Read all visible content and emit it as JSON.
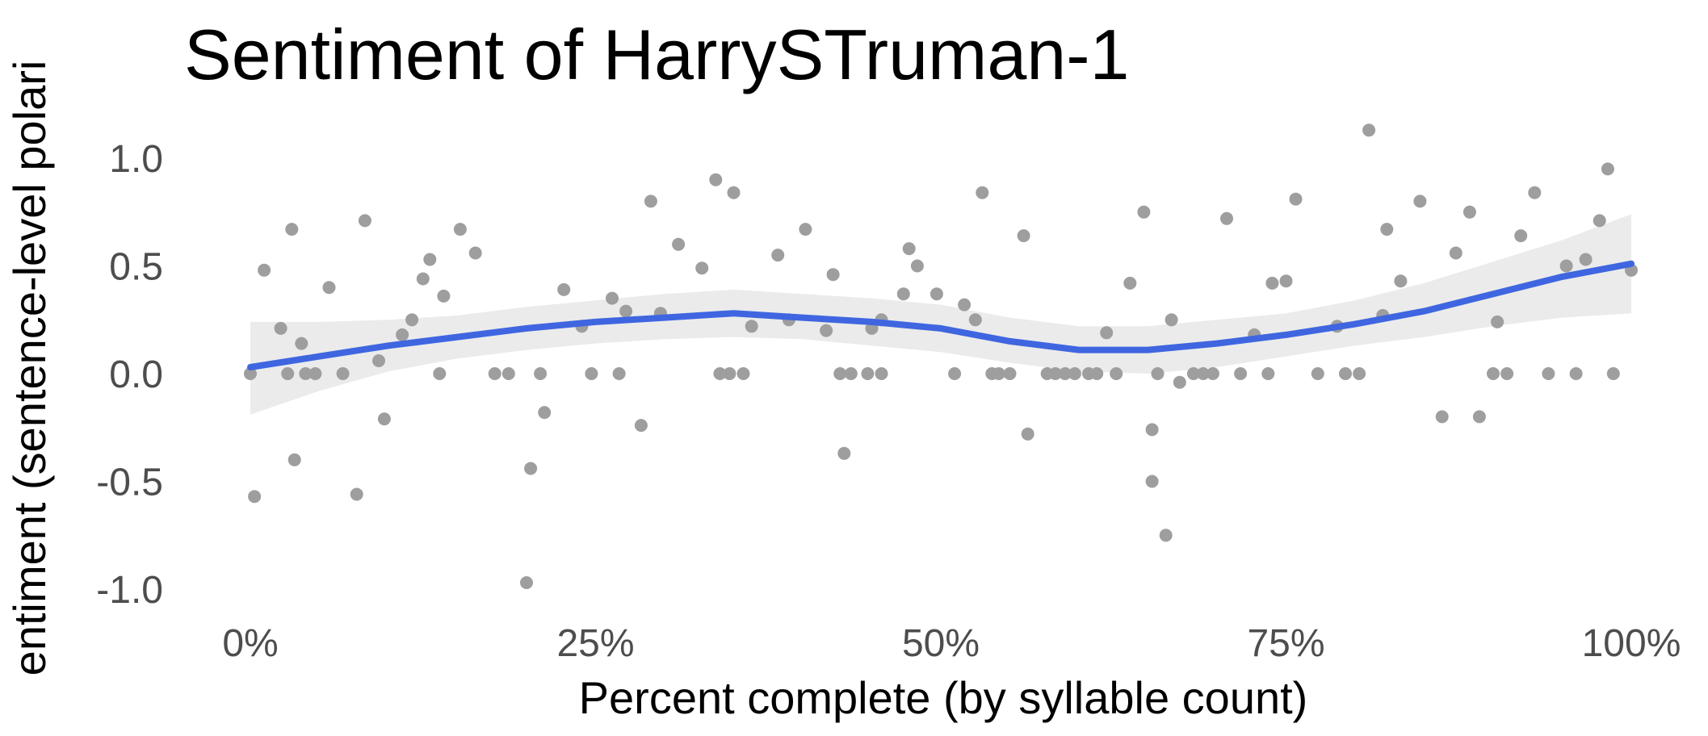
{
  "chart_data": {
    "type": "scatter",
    "title": "Sentiment of HarrySTruman-1",
    "xlabel": "Percent complete (by syllable count)",
    "ylabel": "entiment (sentence-level polari",
    "xlim": [
      -0.02,
      1.02
    ],
    "ylim": [
      -1.1,
      1.2
    ],
    "x_ticks": [
      0,
      0.25,
      0.5,
      0.75,
      1.0
    ],
    "x_tick_labels": [
      "0%",
      "25%",
      "50%",
      "75%",
      "100%"
    ],
    "y_ticks": [
      -1.0,
      -0.5,
      0.0,
      0.5,
      1.0
    ],
    "y_tick_labels": [
      "-1.0",
      "-0.5",
      "0.0",
      "0.5",
      "1.0"
    ],
    "grid": false,
    "colors": {
      "points": "#9e9e9e",
      "smooth": "#3f66e0",
      "band": "#ebebeb"
    },
    "points": [
      [
        0.0,
        0.0
      ],
      [
        0.003,
        -0.57
      ],
      [
        0.01,
        0.48
      ],
      [
        0.022,
        0.21
      ],
      [
        0.027,
        0.0
      ],
      [
        0.03,
        0.67
      ],
      [
        0.032,
        -0.4
      ],
      [
        0.037,
        0.14
      ],
      [
        0.04,
        0.0
      ],
      [
        0.047,
        0.0
      ],
      [
        0.057,
        0.4
      ],
      [
        0.067,
        0.0
      ],
      [
        0.077,
        -0.56
      ],
      [
        0.083,
        0.71
      ],
      [
        0.093,
        0.06
      ],
      [
        0.097,
        -0.21
      ],
      [
        0.11,
        0.18
      ],
      [
        0.117,
        0.25
      ],
      [
        0.125,
        0.44
      ],
      [
        0.13,
        0.53
      ],
      [
        0.137,
        0.0
      ],
      [
        0.14,
        0.36
      ],
      [
        0.152,
        0.67
      ],
      [
        0.163,
        0.56
      ],
      [
        0.177,
        0.0
      ],
      [
        0.187,
        0.0
      ],
      [
        0.2,
        -0.97
      ],
      [
        0.203,
        -0.44
      ],
      [
        0.21,
        0.0
      ],
      [
        0.213,
        -0.18
      ],
      [
        0.227,
        0.39
      ],
      [
        0.24,
        0.22
      ],
      [
        0.247,
        0.0
      ],
      [
        0.262,
        0.35
      ],
      [
        0.267,
        0.0
      ],
      [
        0.272,
        0.29
      ],
      [
        0.283,
        -0.24
      ],
      [
        0.29,
        0.8
      ],
      [
        0.297,
        0.28
      ],
      [
        0.31,
        0.6
      ],
      [
        0.327,
        0.49
      ],
      [
        0.337,
        0.9
      ],
      [
        0.34,
        0.0
      ],
      [
        0.347,
        0.0
      ],
      [
        0.35,
        0.84
      ],
      [
        0.357,
        0.0
      ],
      [
        0.363,
        0.22
      ],
      [
        0.382,
        0.55
      ],
      [
        0.39,
        0.25
      ],
      [
        0.402,
        0.67
      ],
      [
        0.417,
        0.2
      ],
      [
        0.422,
        0.46
      ],
      [
        0.427,
        0.0
      ],
      [
        0.43,
        -0.37
      ],
      [
        0.435,
        0.0
      ],
      [
        0.447,
        0.0
      ],
      [
        0.45,
        0.21
      ],
      [
        0.457,
        0.25
      ],
      [
        0.457,
        0.0
      ],
      [
        0.473,
        0.37
      ],
      [
        0.477,
        0.58
      ],
      [
        0.483,
        0.5
      ],
      [
        0.497,
        0.37
      ],
      [
        0.51,
        0.0
      ],
      [
        0.517,
        0.32
      ],
      [
        0.525,
        0.25
      ],
      [
        0.53,
        0.84
      ],
      [
        0.537,
        0.0
      ],
      [
        0.542,
        0.0
      ],
      [
        0.55,
        0.0
      ],
      [
        0.56,
        0.64
      ],
      [
        0.563,
        -0.28
      ],
      [
        0.577,
        0.0
      ],
      [
        0.583,
        0.0
      ],
      [
        0.59,
        0.0
      ],
      [
        0.597,
        0.0
      ],
      [
        0.607,
        0.0
      ],
      [
        0.613,
        0.0
      ],
      [
        0.62,
        0.19
      ],
      [
        0.627,
        0.0
      ],
      [
        0.637,
        0.42
      ],
      [
        0.647,
        0.75
      ],
      [
        0.653,
        -0.26
      ],
      [
        0.653,
        -0.5
      ],
      [
        0.657,
        0.0
      ],
      [
        0.663,
        -0.75
      ],
      [
        0.667,
        0.25
      ],
      [
        0.673,
        -0.04
      ],
      [
        0.683,
        0.0
      ],
      [
        0.69,
        0.0
      ],
      [
        0.697,
        0.0
      ],
      [
        0.707,
        0.72
      ],
      [
        0.717,
        0.0
      ],
      [
        0.727,
        0.18
      ],
      [
        0.737,
        0.0
      ],
      [
        0.74,
        0.42
      ],
      [
        0.75,
        0.43
      ],
      [
        0.757,
        0.81
      ],
      [
        0.773,
        0.0
      ],
      [
        0.787,
        0.22
      ],
      [
        0.793,
        0.0
      ],
      [
        0.803,
        0.0
      ],
      [
        0.81,
        1.13
      ],
      [
        0.82,
        0.27
      ],
      [
        0.823,
        0.67
      ],
      [
        0.833,
        0.43
      ],
      [
        0.847,
        0.8
      ],
      [
        0.863,
        -0.2
      ],
      [
        0.873,
        0.56
      ],
      [
        0.883,
        0.75
      ],
      [
        0.89,
        -0.2
      ],
      [
        0.9,
        0.0
      ],
      [
        0.903,
        0.24
      ],
      [
        0.91,
        0.0
      ],
      [
        0.92,
        0.64
      ],
      [
        0.93,
        0.84
      ],
      [
        0.94,
        0.0
      ],
      [
        0.953,
        0.5
      ],
      [
        0.96,
        0.0
      ],
      [
        0.967,
        0.53
      ],
      [
        0.977,
        0.71
      ],
      [
        0.983,
        0.95
      ],
      [
        0.987,
        0.0
      ],
      [
        1.0,
        0.48
      ]
    ],
    "smooth_line": [
      [
        0.0,
        0.03
      ],
      [
        0.05,
        0.08
      ],
      [
        0.1,
        0.13
      ],
      [
        0.15,
        0.17
      ],
      [
        0.2,
        0.21
      ],
      [
        0.25,
        0.24
      ],
      [
        0.3,
        0.26
      ],
      [
        0.35,
        0.28
      ],
      [
        0.4,
        0.26
      ],
      [
        0.45,
        0.24
      ],
      [
        0.5,
        0.21
      ],
      [
        0.55,
        0.15
      ],
      [
        0.6,
        0.11
      ],
      [
        0.65,
        0.11
      ],
      [
        0.7,
        0.14
      ],
      [
        0.75,
        0.18
      ],
      [
        0.8,
        0.23
      ],
      [
        0.85,
        0.29
      ],
      [
        0.9,
        0.37
      ],
      [
        0.95,
        0.45
      ],
      [
        1.0,
        0.51
      ]
    ],
    "band_upper": [
      [
        0.0,
        0.24
      ],
      [
        0.05,
        0.24
      ],
      [
        0.1,
        0.25
      ],
      [
        0.15,
        0.27
      ],
      [
        0.2,
        0.31
      ],
      [
        0.25,
        0.34
      ],
      [
        0.3,
        0.37
      ],
      [
        0.35,
        0.39
      ],
      [
        0.4,
        0.37
      ],
      [
        0.45,
        0.35
      ],
      [
        0.5,
        0.32
      ],
      [
        0.55,
        0.26
      ],
      [
        0.6,
        0.22
      ],
      [
        0.65,
        0.22
      ],
      [
        0.7,
        0.25
      ],
      [
        0.75,
        0.28
      ],
      [
        0.8,
        0.34
      ],
      [
        0.85,
        0.42
      ],
      [
        0.9,
        0.52
      ],
      [
        0.95,
        0.62
      ],
      [
        1.0,
        0.74
      ]
    ],
    "band_lower": [
      [
        0.0,
        -0.19
      ],
      [
        0.05,
        -0.08
      ],
      [
        0.1,
        0.01
      ],
      [
        0.15,
        0.07
      ],
      [
        0.2,
        0.11
      ],
      [
        0.25,
        0.14
      ],
      [
        0.3,
        0.16
      ],
      [
        0.35,
        0.17
      ],
      [
        0.4,
        0.16
      ],
      [
        0.45,
        0.13
      ],
      [
        0.5,
        0.1
      ],
      [
        0.55,
        0.05
      ],
      [
        0.6,
        0.01
      ],
      [
        0.65,
        0.0
      ],
      [
        0.7,
        0.03
      ],
      [
        0.75,
        0.08
      ],
      [
        0.8,
        0.13
      ],
      [
        0.85,
        0.17
      ],
      [
        0.9,
        0.22
      ],
      [
        0.95,
        0.26
      ],
      [
        1.0,
        0.28
      ]
    ]
  }
}
